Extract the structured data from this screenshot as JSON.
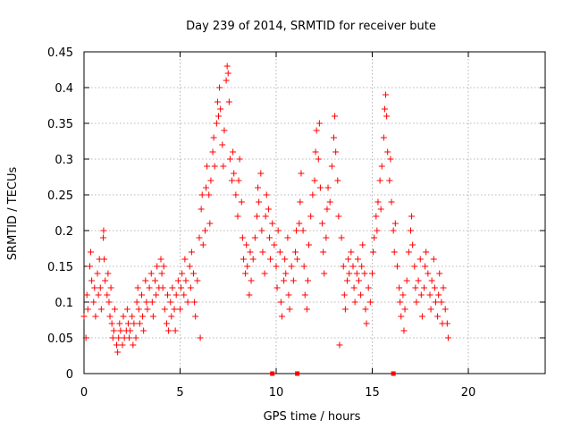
{
  "chart_data": {
    "type": "scatter",
    "title": "Day 239 of 2014, SRMTID for receiver bute",
    "xlabel": "GPS time / hours",
    "ylabel": "SRMTID / TECUs",
    "xlim": [
      0,
      24
    ],
    "ylim": [
      0,
      0.45
    ],
    "x_ticks": [
      0,
      5,
      10,
      15,
      20
    ],
    "x_tick_labels": [
      "0",
      "5",
      "10",
      "15",
      "20"
    ],
    "y_ticks": [
      0,
      0.05,
      0.1,
      0.15,
      0.2,
      0.25,
      0.3,
      0.35,
      0.4,
      0.45
    ],
    "y_tick_labels": [
      "0",
      "0.05",
      "0.1",
      "0.15",
      "0.2",
      "0.25",
      "0.3",
      "0.35",
      "0.4",
      "0.45"
    ],
    "grid": true,
    "marker": "+",
    "color": "#ff0000",
    "series": [
      {
        "name": "SRMTID",
        "points": [
          [
            0.0,
            0.08
          ],
          [
            0.1,
            0.05
          ],
          [
            0.15,
            0.11
          ],
          [
            0.2,
            0.09
          ],
          [
            0.3,
            0.15
          ],
          [
            0.35,
            0.17
          ],
          [
            0.4,
            0.13
          ],
          [
            0.5,
            0.1
          ],
          [
            0.55,
            0.12
          ],
          [
            0.6,
            0.08
          ],
          [
            0.7,
            0.14
          ],
          [
            0.75,
            0.11
          ],
          [
            0.8,
            0.16
          ],
          [
            0.85,
            0.12
          ],
          [
            0.9,
            0.09
          ],
          [
            1.0,
            0.19
          ],
          [
            1.02,
            0.2
          ],
          [
            1.05,
            0.16
          ],
          [
            1.1,
            0.13
          ],
          [
            1.2,
            0.11
          ],
          [
            1.25,
            0.14
          ],
          [
            1.3,
            0.1
          ],
          [
            1.35,
            0.08
          ],
          [
            1.4,
            0.12
          ],
          [
            1.45,
            0.07
          ],
          [
            1.5,
            0.05
          ],
          [
            1.55,
            0.06
          ],
          [
            1.6,
            0.09
          ],
          [
            1.7,
            0.04
          ],
          [
            1.75,
            0.03
          ],
          [
            1.8,
            0.05
          ],
          [
            1.85,
            0.07
          ],
          [
            1.9,
            0.06
          ],
          [
            2.0,
            0.04
          ],
          [
            2.05,
            0.08
          ],
          [
            2.1,
            0.05
          ],
          [
            2.2,
            0.06
          ],
          [
            2.25,
            0.09
          ],
          [
            2.3,
            0.07
          ],
          [
            2.35,
            0.05
          ],
          [
            2.4,
            0.06
          ],
          [
            2.5,
            0.08
          ],
          [
            2.55,
            0.04
          ],
          [
            2.6,
            0.07
          ],
          [
            2.7,
            0.05
          ],
          [
            2.75,
            0.1
          ],
          [
            2.8,
            0.12
          ],
          [
            2.85,
            0.09
          ],
          [
            2.9,
            0.07
          ],
          [
            3.0,
            0.11
          ],
          [
            3.05,
            0.08
          ],
          [
            3.1,
            0.06
          ],
          [
            3.2,
            0.13
          ],
          [
            3.25,
            0.1
          ],
          [
            3.3,
            0.09
          ],
          [
            3.4,
            0.12
          ],
          [
            3.5,
            0.14
          ],
          [
            3.55,
            0.1
          ],
          [
            3.6,
            0.08
          ],
          [
            3.7,
            0.13
          ],
          [
            3.75,
            0.11
          ],
          [
            3.8,
            0.15
          ],
          [
            3.9,
            0.12
          ],
          [
            4.0,
            0.16
          ],
          [
            4.05,
            0.14
          ],
          [
            4.1,
            0.12
          ],
          [
            4.15,
            0.15
          ],
          [
            4.2,
            0.09
          ],
          [
            4.3,
            0.07
          ],
          [
            4.35,
            0.11
          ],
          [
            4.4,
            0.06
          ],
          [
            4.5,
            0.1
          ],
          [
            4.55,
            0.08
          ],
          [
            4.6,
            0.12
          ],
          [
            4.7,
            0.09
          ],
          [
            4.75,
            0.06
          ],
          [
            4.8,
            0.11
          ],
          [
            4.9,
            0.13
          ],
          [
            5.0,
            0.09
          ],
          [
            5.05,
            0.12
          ],
          [
            5.1,
            0.14
          ],
          [
            5.2,
            0.11
          ],
          [
            5.25,
            0.16
          ],
          [
            5.3,
            0.13
          ],
          [
            5.4,
            0.1
          ],
          [
            5.5,
            0.15
          ],
          [
            5.55,
            0.12
          ],
          [
            5.6,
            0.17
          ],
          [
            5.7,
            0.14
          ],
          [
            5.75,
            0.1
          ],
          [
            5.8,
            0.08
          ],
          [
            5.9,
            0.13
          ],
          [
            6.0,
            0.19
          ],
          [
            6.05,
            0.05
          ],
          [
            6.1,
            0.23
          ],
          [
            6.15,
            0.25
          ],
          [
            6.2,
            0.18
          ],
          [
            6.3,
            0.2
          ],
          [
            6.35,
            0.26
          ],
          [
            6.4,
            0.29
          ],
          [
            6.5,
            0.25
          ],
          [
            6.55,
            0.21
          ],
          [
            6.6,
            0.27
          ],
          [
            6.7,
            0.31
          ],
          [
            6.75,
            0.33
          ],
          [
            6.8,
            0.29
          ],
          [
            6.9,
            0.35
          ],
          [
            6.95,
            0.38
          ],
          [
            7.0,
            0.36
          ],
          [
            7.05,
            0.4
          ],
          [
            7.1,
            0.37
          ],
          [
            7.2,
            0.32
          ],
          [
            7.25,
            0.29
          ],
          [
            7.3,
            0.34
          ],
          [
            7.4,
            0.41
          ],
          [
            7.45,
            0.43
          ],
          [
            7.5,
            0.42
          ],
          [
            7.55,
            0.38
          ],
          [
            7.6,
            0.3
          ],
          [
            7.7,
            0.27
          ],
          [
            7.75,
            0.31
          ],
          [
            7.8,
            0.28
          ],
          [
            7.9,
            0.25
          ],
          [
            8.0,
            0.22
          ],
          [
            8.05,
            0.27
          ],
          [
            8.1,
            0.3
          ],
          [
            8.2,
            0.24
          ],
          [
            8.25,
            0.19
          ],
          [
            8.3,
            0.16
          ],
          [
            8.4,
            0.14
          ],
          [
            8.45,
            0.18
          ],
          [
            8.5,
            0.15
          ],
          [
            8.6,
            0.11
          ],
          [
            8.65,
            0.17
          ],
          [
            8.7,
            0.13
          ],
          [
            8.8,
            0.16
          ],
          [
            8.9,
            0.19
          ],
          [
            9.0,
            0.22
          ],
          [
            9.05,
            0.26
          ],
          [
            9.1,
            0.24
          ],
          [
            9.2,
            0.28
          ],
          [
            9.25,
            0.2
          ],
          [
            9.3,
            0.17
          ],
          [
            9.4,
            0.14
          ],
          [
            9.45,
            0.22
          ],
          [
            9.5,
            0.25
          ],
          [
            9.6,
            0.23
          ],
          [
            9.65,
            0.19
          ],
          [
            9.7,
            0.16
          ],
          [
            9.8,
            0.21
          ],
          [
            9.9,
            0.18
          ],
          [
            10.0,
            0.15
          ],
          [
            10.05,
            0.12
          ],
          [
            10.1,
            0.2
          ],
          [
            10.2,
            0.17
          ],
          [
            10.25,
            0.1
          ],
          [
            10.3,
            0.08
          ],
          [
            10.4,
            0.13
          ],
          [
            10.45,
            0.16
          ],
          [
            10.5,
            0.14
          ],
          [
            10.6,
            0.19
          ],
          [
            10.65,
            0.11
          ],
          [
            10.7,
            0.09
          ],
          [
            10.8,
            0.15
          ],
          [
            10.9,
            0.13
          ],
          [
            11.0,
            0.17
          ],
          [
            11.05,
            0.2
          ],
          [
            11.1,
            0.16
          ],
          [
            11.2,
            0.21
          ],
          [
            11.25,
            0.24
          ],
          [
            11.3,
            0.28
          ],
          [
            11.4,
            0.2
          ],
          [
            11.45,
            0.15
          ],
          [
            11.5,
            0.11
          ],
          [
            11.6,
            0.09
          ],
          [
            11.65,
            0.13
          ],
          [
            11.7,
            0.18
          ],
          [
            11.8,
            0.22
          ],
          [
            11.9,
            0.25
          ],
          [
            12.0,
            0.27
          ],
          [
            12.05,
            0.31
          ],
          [
            12.1,
            0.34
          ],
          [
            12.2,
            0.3
          ],
          [
            12.25,
            0.35
          ],
          [
            12.3,
            0.26
          ],
          [
            12.4,
            0.21
          ],
          [
            12.45,
            0.17
          ],
          [
            12.5,
            0.14
          ],
          [
            12.6,
            0.19
          ],
          [
            12.65,
            0.23
          ],
          [
            12.7,
            0.26
          ],
          [
            12.8,
            0.24
          ],
          [
            12.9,
            0.29
          ],
          [
            13.0,
            0.33
          ],
          [
            13.05,
            0.36
          ],
          [
            13.1,
            0.31
          ],
          [
            13.2,
            0.27
          ],
          [
            13.25,
            0.22
          ],
          [
            13.3,
            0.04
          ],
          [
            13.4,
            0.19
          ],
          [
            13.5,
            0.15
          ],
          [
            13.55,
            0.11
          ],
          [
            13.6,
            0.09
          ],
          [
            13.7,
            0.13
          ],
          [
            13.75,
            0.16
          ],
          [
            13.8,
            0.14
          ],
          [
            13.9,
            0.17
          ],
          [
            14.0,
            0.15
          ],
          [
            14.05,
            0.12
          ],
          [
            14.1,
            0.1
          ],
          [
            14.2,
            0.14
          ],
          [
            14.25,
            0.16
          ],
          [
            14.3,
            0.13
          ],
          [
            14.4,
            0.11
          ],
          [
            14.45,
            0.15
          ],
          [
            14.5,
            0.18
          ],
          [
            14.6,
            0.14
          ],
          [
            14.65,
            0.09
          ],
          [
            14.7,
            0.07
          ],
          [
            14.8,
            0.12
          ],
          [
            14.9,
            0.1
          ],
          [
            15.0,
            0.14
          ],
          [
            15.05,
            0.17
          ],
          [
            15.1,
            0.19
          ],
          [
            15.2,
            0.22
          ],
          [
            15.25,
            0.2
          ],
          [
            15.3,
            0.24
          ],
          [
            15.4,
            0.27
          ],
          [
            15.45,
            0.23
          ],
          [
            15.5,
            0.29
          ],
          [
            15.6,
            0.33
          ],
          [
            15.65,
            0.37
          ],
          [
            15.7,
            0.39
          ],
          [
            15.75,
            0.36
          ],
          [
            15.8,
            0.31
          ],
          [
            15.9,
            0.27
          ],
          [
            15.95,
            0.3
          ],
          [
            16.0,
            0.24
          ],
          [
            16.1,
            0.2
          ],
          [
            16.15,
            0.17
          ],
          [
            16.2,
            0.21
          ],
          [
            16.3,
            0.15
          ],
          [
            16.4,
            0.12
          ],
          [
            16.45,
            0.1
          ],
          [
            16.5,
            0.08
          ],
          [
            16.6,
            0.11
          ],
          [
            16.65,
            0.06
          ],
          [
            16.7,
            0.09
          ],
          [
            16.8,
            0.13
          ],
          [
            16.9,
            0.17
          ],
          [
            17.0,
            0.2
          ],
          [
            17.05,
            0.22
          ],
          [
            17.1,
            0.18
          ],
          [
            17.2,
            0.15
          ],
          [
            17.25,
            0.12
          ],
          [
            17.3,
            0.1
          ],
          [
            17.4,
            0.13
          ],
          [
            17.5,
            0.16
          ],
          [
            17.55,
            0.11
          ],
          [
            17.6,
            0.08
          ],
          [
            17.7,
            0.12
          ],
          [
            17.75,
            0.15
          ],
          [
            17.8,
            0.17
          ],
          [
            17.9,
            0.14
          ],
          [
            18.0,
            0.11
          ],
          [
            18.05,
            0.09
          ],
          [
            18.1,
            0.13
          ],
          [
            18.2,
            0.16
          ],
          [
            18.25,
            0.12
          ],
          [
            18.3,
            0.1
          ],
          [
            18.4,
            0.08
          ],
          [
            18.45,
            0.11
          ],
          [
            18.5,
            0.14
          ],
          [
            18.6,
            0.1
          ],
          [
            18.65,
            0.07
          ],
          [
            18.7,
            0.12
          ],
          [
            18.8,
            0.09
          ],
          [
            18.9,
            0.07
          ],
          [
            18.95,
            0.05
          ]
        ]
      }
    ],
    "axis_markers": [
      {
        "x": 9.8,
        "y": 0
      },
      {
        "x": 11.1,
        "y": 0
      },
      {
        "x": 16.1,
        "y": 0
      }
    ]
  }
}
